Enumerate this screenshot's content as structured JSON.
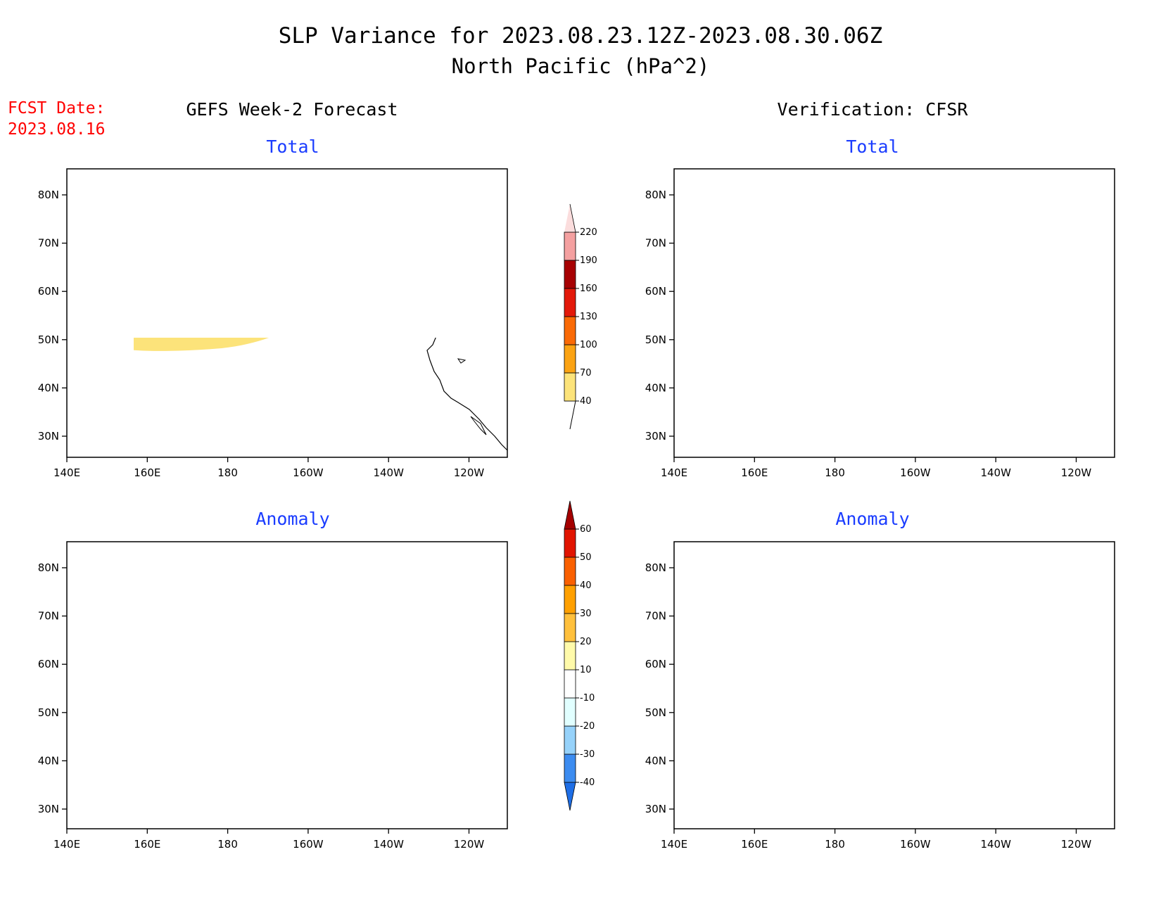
{
  "header": {
    "title": "SLP Variance for 2023.08.23.12Z-2023.08.30.06Z",
    "subtitle": "North Pacific (hPa^2)",
    "fcst_label": "FCST Date:",
    "fcst_date": "2023.08.16"
  },
  "columns": {
    "left": "GEFS Week-2 Forecast",
    "right": "Verification: CFSR"
  },
  "panels": {
    "gefs_total": {
      "title": "Total"
    },
    "cfsr_total": {
      "title": "Total"
    },
    "gefs_anomaly": {
      "title": "Anomaly"
    },
    "cfsr_anomaly": {
      "title": "Anomaly"
    }
  },
  "axes": {
    "lon_labels": [
      "140E",
      "160E",
      "180",
      "160W",
      "140W",
      "120W"
    ],
    "lat_labels": [
      "30N",
      "40N",
      "50N",
      "60N",
      "70N",
      "80N"
    ]
  },
  "colorbar_total": {
    "labels": [
      "40",
      "70",
      "100",
      "130",
      "160",
      "190",
      "220"
    ],
    "colors": [
      "#fce37a",
      "#fba313",
      "#fa6a06",
      "#e3190a",
      "#a70103",
      "#f4a0a0",
      "#fbdddd"
    ]
  },
  "colorbar_anomaly": {
    "labels": [
      "-40",
      "-30",
      "-20",
      "-10",
      "10",
      "20",
      "30",
      "40",
      "50",
      "60"
    ],
    "colors": [
      "#1e6ee6",
      "#3c8cf0",
      "#96d2fa",
      "#e1ffff",
      "#ffffff",
      "#fffaaa",
      "#ffc03c",
      "#ffa000",
      "#fa6000",
      "#e11400",
      "#a50000"
    ]
  },
  "colors": {
    "title_blue": "#1a3cff",
    "fcst_red": "#ff0000"
  }
}
